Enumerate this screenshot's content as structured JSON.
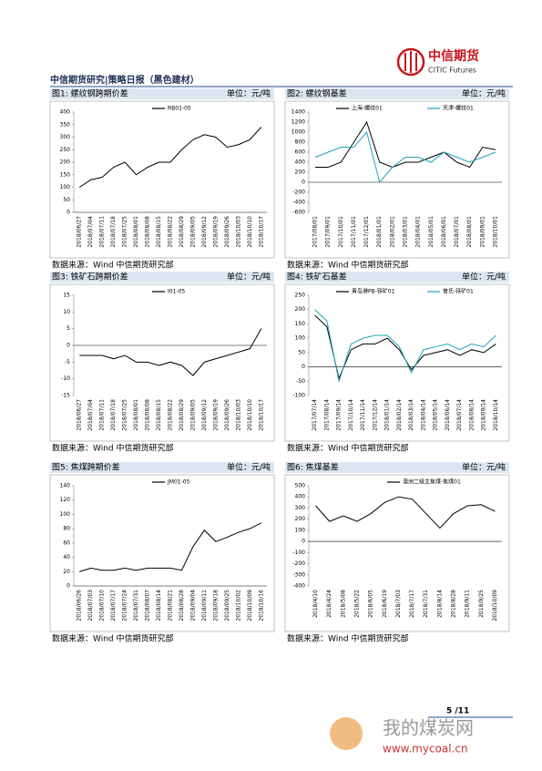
{
  "header": {
    "title": "中信期货研究|策略日报（黑色建材）",
    "logo_cn": "中信期货",
    "logo_en": "CITIC Futures"
  },
  "chart_data": [
    {
      "type": "line",
      "title": "图1: 螺纹钢跨期价差",
      "unit": "单位：元/吨",
      "source": "数据来源：Wind  中信期货研究部",
      "categories": [
        "2018/06/27",
        "2018/07/04",
        "2018/07/11",
        "2018/07/18",
        "2018/07/25",
        "2018/08/01",
        "2018/08/08",
        "2018/08/15",
        "2018/08/22",
        "2018/08/29",
        "2018/09/05",
        "2018/09/12",
        "2018/09/19",
        "2018/09/26",
        "2018/10/03",
        "2018/10/10",
        "2018/10/17"
      ],
      "series": [
        {
          "name": "RB01-05",
          "color": "#000000",
          "values": [
            100,
            130,
            140,
            180,
            200,
            150,
            180,
            200,
            200,
            250,
            290,
            310,
            300,
            260,
            270,
            290,
            340
          ]
        }
      ],
      "ylim": [
        0,
        400
      ],
      "yticks": [
        0,
        50,
        100,
        150,
        200,
        250,
        300,
        350,
        400
      ]
    },
    {
      "type": "line",
      "title": "图2: 螺纹钢基差",
      "unit": "单位：元/吨",
      "source": "数据来源：Wind  中信期货研究部",
      "categories": [
        "2017/08/01",
        "2017/09/01",
        "2017/10/01",
        "2017/11/01",
        "2017/12/01",
        "2018/01/01",
        "2018/02/01",
        "2018/03/01",
        "2018/04/01",
        "2018/05/01",
        "2018/06/01",
        "2018/07/01",
        "2018/08/01",
        "2018/09/01",
        "2018/10/01"
      ],
      "series": [
        {
          "name": "上海-螺纹01",
          "color": "#000000",
          "values": [
            300,
            300,
            400,
            800,
            1200,
            400,
            300,
            400,
            400,
            500,
            600,
            400,
            300,
            700,
            650
          ]
        },
        {
          "name": "天津-螺纹01",
          "color": "#1fa3b8",
          "values": [
            500,
            600,
            700,
            700,
            1000,
            0,
            300,
            500,
            500,
            400,
            600,
            500,
            400,
            500,
            600
          ]
        }
      ],
      "ylim": [
        -600,
        1400
      ],
      "yticks": [
        -600,
        -400,
        -200,
        0,
        200,
        400,
        600,
        800,
        1000,
        1200,
        1400
      ]
    },
    {
      "type": "line",
      "title": "图3: 铁矿石跨期价差",
      "unit": "单位：元/吨",
      "source": "数据来源：Wind  中信期货研究部",
      "categories": [
        "2018/06/27",
        "2018/07/04",
        "2018/07/11",
        "2018/07/18",
        "2018/07/25",
        "2018/08/01",
        "2018/08/08",
        "2018/08/15",
        "2018/08/22",
        "2018/08/29",
        "2018/09/05",
        "2018/09/12",
        "2018/09/19",
        "2018/09/26",
        "2018/10/03",
        "2018/10/10",
        "2018/10/17"
      ],
      "series": [
        {
          "name": "I01-05",
          "color": "#000000",
          "values": [
            -3,
            -3,
            -3,
            -4,
            -3,
            -5,
            -5,
            -6,
            -5,
            -6,
            -9,
            -5,
            -4,
            -3,
            -2,
            -1,
            5
          ]
        }
      ],
      "ylim": [
        -15,
        15
      ],
      "yticks": [
        -15,
        -10,
        -5,
        0,
        5,
        10,
        15
      ]
    },
    {
      "type": "line",
      "title": "图4: 铁矿石基差",
      "unit": "单位：元/吨",
      "source": "数据来源：Wind  中信期货研究部",
      "categories": [
        "2017/07/14",
        "2017/08/14",
        "2017/09/14",
        "2017/10/14",
        "2017/11/14",
        "2017/12/14",
        "2018/01/14",
        "2018/02/14",
        "2018/03/14",
        "2018/04/14",
        "2018/05/14",
        "2018/06/14",
        "2018/07/14",
        "2018/08/14",
        "2018/09/14",
        "2018/10/14"
      ],
      "series": [
        {
          "name": "青岛港PB-铁矿01",
          "color": "#000000",
          "values": [
            180,
            140,
            -40,
            60,
            80,
            80,
            100,
            60,
            -10,
            40,
            50,
            60,
            40,
            60,
            50,
            80
          ]
        },
        {
          "name": "普氏-铁矿01",
          "color": "#1fa3b8",
          "values": [
            200,
            160,
            -50,
            80,
            100,
            110,
            110,
            70,
            -20,
            60,
            70,
            80,
            60,
            80,
            70,
            110
          ]
        }
      ],
      "ylim": [
        -100,
        250
      ],
      "yticks": [
        -100,
        -50,
        0,
        50,
        100,
        150,
        200,
        250
      ]
    },
    {
      "type": "line",
      "title": "图5: 焦煤跨期价差",
      "unit": "单位：元/吨",
      "source": "数据来源：Wind  中信期货研究部",
      "categories": [
        "2018/06/26",
        "2018/07/03",
        "2018/07/10",
        "2018/07/17",
        "2018/07/24",
        "2018/07/31",
        "2018/08/07",
        "2018/08/14",
        "2018/08/21",
        "2018/08/28",
        "2018/09/04",
        "2018/09/11",
        "2018/09/18",
        "2018/09/25",
        "2018/10/02",
        "2018/10/09",
        "2018/10/16"
      ],
      "series": [
        {
          "name": "JM01-05",
          "color": "#000000",
          "values": [
            20,
            25,
            22,
            22,
            25,
            22,
            25,
            25,
            25,
            22,
            55,
            78,
            62,
            68,
            75,
            80,
            88
          ]
        }
      ],
      "ylim": [
        0,
        140
      ],
      "yticks": [
        0,
        20,
        40,
        60,
        80,
        100,
        120,
        140
      ]
    },
    {
      "type": "line",
      "title": "图6: 焦煤基差",
      "unit": "单位：元/吨",
      "source": "数据来源：Wind  中信期货研究部",
      "categories": [
        "2018/4/10",
        "2018/4/24",
        "2018/5/08",
        "2018/5/22",
        "2018/6/05",
        "2018/6/19",
        "2018/7/03",
        "2018/7/17",
        "2018/7/31",
        "2018/8/14",
        "2018/8/28",
        "2018/9/11",
        "2018/9/25",
        "2018/10/09"
      ],
      "series": [
        {
          "name": "澳洲二级主焦煤-焦煤01",
          "color": "#000000",
          "values": [
            320,
            180,
            230,
            180,
            250,
            350,
            400,
            380,
            250,
            120,
            250,
            320,
            330,
            270
          ]
        }
      ],
      "ylim": [
        -400,
        500
      ],
      "yticks": [
        -400,
        -300,
        -200,
        -100,
        0,
        100,
        200,
        300,
        400,
        500
      ]
    }
  ],
  "footer": {
    "page": "5 /11",
    "watermark": "我的煤炭网",
    "watermark_url": "www.mycoal.cn"
  }
}
